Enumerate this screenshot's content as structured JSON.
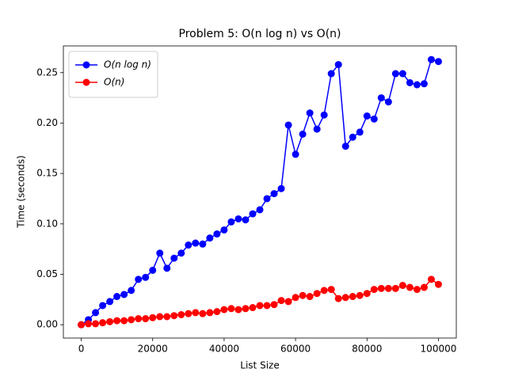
{
  "chart_data": {
    "type": "line",
    "title": "Problem 5: O(n log n) vs O(n)",
    "xlabel": "List Size",
    "ylabel": "Time (seconds)",
    "x": [
      0,
      2000,
      4000,
      6000,
      8000,
      10000,
      12000,
      14000,
      16000,
      18000,
      20000,
      22000,
      24000,
      26000,
      28000,
      30000,
      32000,
      34000,
      36000,
      38000,
      40000,
      42000,
      44000,
      46000,
      48000,
      50000,
      52000,
      54000,
      56000,
      58000,
      60000,
      62000,
      64000,
      66000,
      68000,
      70000,
      72000,
      74000,
      76000,
      78000,
      80000,
      82000,
      84000,
      86000,
      88000,
      90000,
      92000,
      94000,
      96000,
      98000,
      100000
    ],
    "series": [
      {
        "name": "O(n log n)",
        "color": "#0000ff",
        "values": [
          0.0,
          0.005,
          0.012,
          0.019,
          0.023,
          0.028,
          0.03,
          0.034,
          0.045,
          0.047,
          0.054,
          0.071,
          0.056,
          0.066,
          0.071,
          0.079,
          0.081,
          0.08,
          0.086,
          0.09,
          0.094,
          0.102,
          0.105,
          0.104,
          0.11,
          0.114,
          0.125,
          0.13,
          0.135,
          0.198,
          0.169,
          0.189,
          0.21,
          0.194,
          0.208,
          0.249,
          0.258,
          0.177,
          0.186,
          0.191,
          0.207,
          0.204,
          0.225,
          0.221,
          0.249,
          0.249,
          0.24,
          0.238,
          0.239,
          0.263,
          0.261
        ]
      },
      {
        "name": "O(n)",
        "color": "#ff0000",
        "values": [
          0.0,
          0.001,
          0.001,
          0.002,
          0.003,
          0.004,
          0.004,
          0.005,
          0.006,
          0.006,
          0.007,
          0.008,
          0.008,
          0.009,
          0.01,
          0.011,
          0.012,
          0.011,
          0.012,
          0.013,
          0.015,
          0.016,
          0.015,
          0.016,
          0.017,
          0.019,
          0.019,
          0.02,
          0.024,
          0.023,
          0.027,
          0.029,
          0.028,
          0.031,
          0.034,
          0.035,
          0.026,
          0.027,
          0.028,
          0.029,
          0.031,
          0.035,
          0.036,
          0.036,
          0.036,
          0.039,
          0.037,
          0.035,
          0.037,
          0.045,
          0.04
        ]
      }
    ],
    "xlim": [
      -5000,
      105000
    ],
    "xticks": [
      0,
      20000,
      40000,
      60000,
      80000,
      100000
    ],
    "ylim": [
      -0.0132,
      0.2765
    ],
    "yticks": [
      {
        "value": 0,
        "label": "0.00"
      },
      {
        "value": 0.05,
        "label": "0.05"
      },
      {
        "value": 0.1,
        "label": "0.10"
      },
      {
        "value": 0.15,
        "label": "0.15"
      },
      {
        "value": 0.2,
        "label": "0.20"
      },
      {
        "value": 0.25,
        "label": "0.25"
      }
    ],
    "legend": "upper left",
    "grid": false
  }
}
